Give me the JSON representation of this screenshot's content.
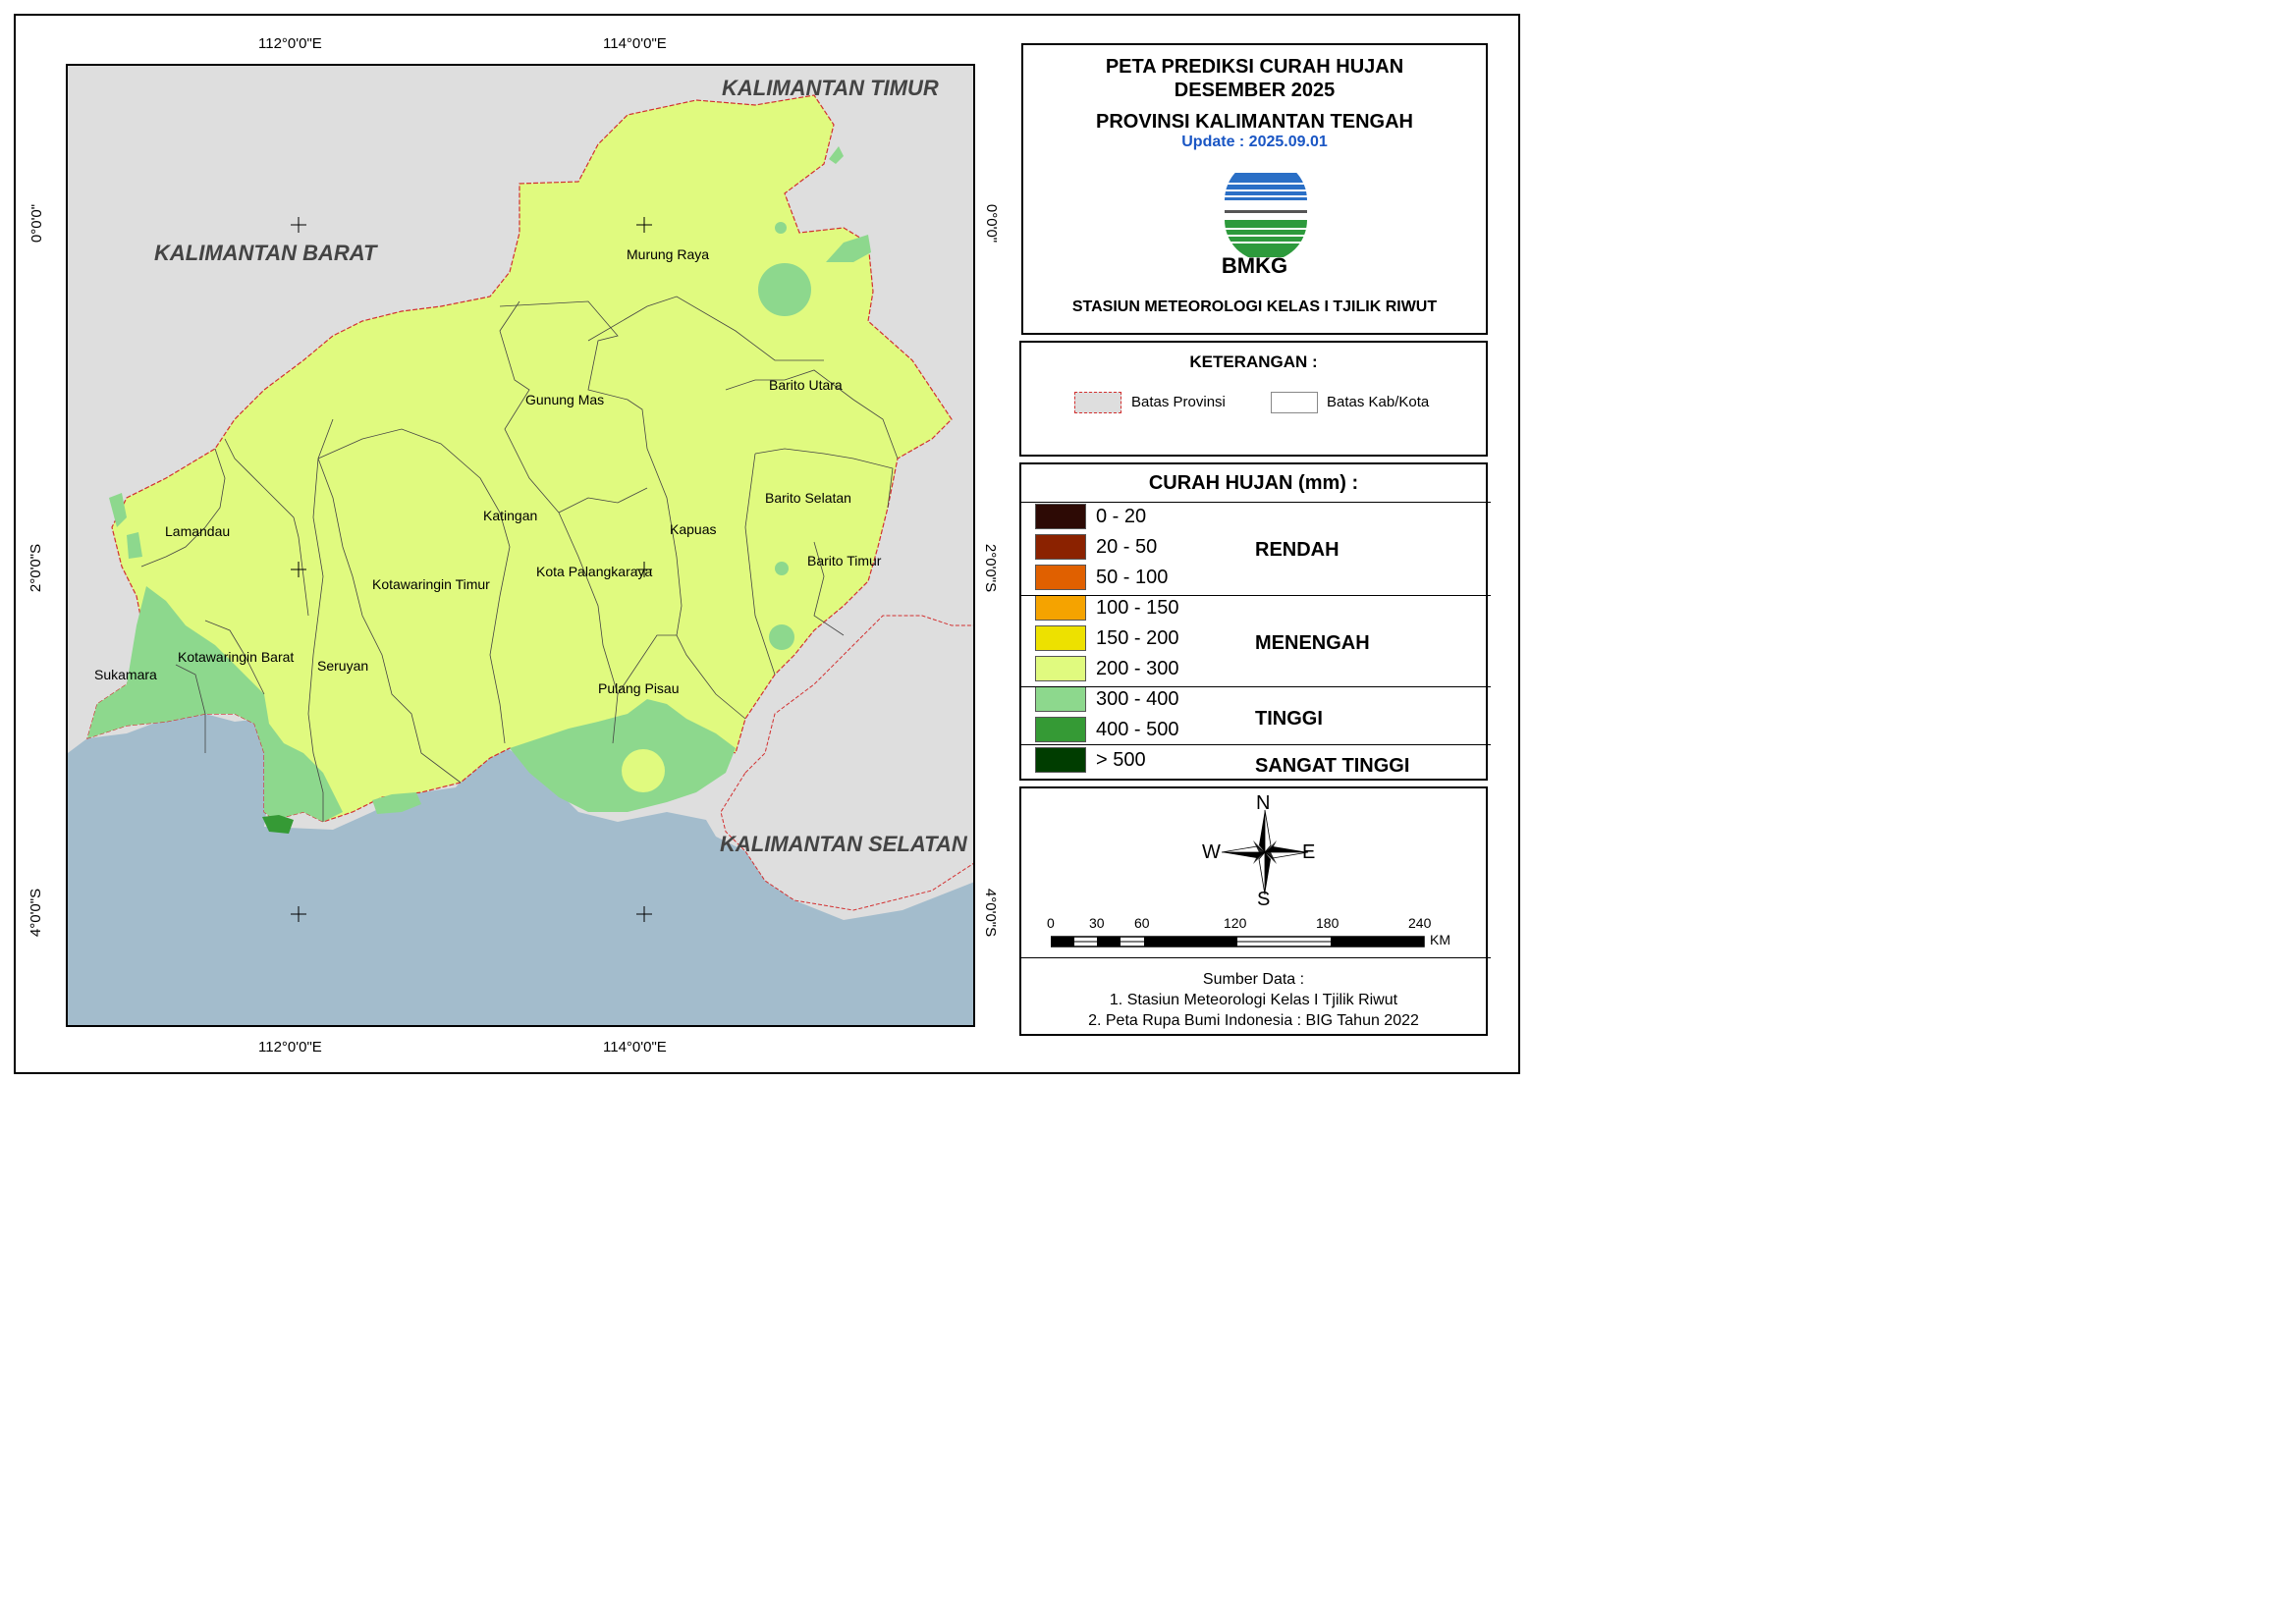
{
  "coords": {
    "top": [
      "112°0'0\"E",
      "114°0'0\"E"
    ],
    "bottom": [
      "112°0'0\"E",
      "114°0'0\"E"
    ],
    "left": [
      "0°0'0\"",
      "2°0'0\"S",
      "4°0'0\"S"
    ],
    "right": [
      "0°0'0\"",
      "2°0'0\"S",
      "4°0'0\"S"
    ]
  },
  "map": {
    "provinces": {
      "timur": "KALIMANTAN TIMUR",
      "barat": "KALIMANTAN BARAT",
      "selatan": "KALIMANTAN SELATAN"
    },
    "regencies": {
      "murung_raya": "Murung Raya",
      "gunung_mas": "Gunung Mas",
      "barito_utara": "Barito Utara",
      "katingan": "Katingan",
      "kapuas": "Kapuas",
      "barito_selatan": "Barito Selatan",
      "lamandau": "Lamandau",
      "kota_palangkaraya": "Kota Palangkaraya",
      "barito_timur": "Barito Timur",
      "kotawaringin_timur": "Kotawaringin Timur",
      "kotawaringin_barat": "Kotawaringin Barat",
      "sukamara": "Sukamara",
      "seruyan": "Seruyan",
      "pulang_pisau": "Pulang Pisau"
    },
    "colors": {
      "outside": "#dedede",
      "sea": "#a3bccc",
      "r200_300": "#e0fa7f",
      "r300_400": "#8dd88d",
      "r400_500": "#359a35"
    }
  },
  "title": {
    "line1": "PETA PREDIKSI CURAH HUJAN",
    "line2": "DESEMBER 2025",
    "line3": "PROVINSI KALIMANTAN TENGAH",
    "update": "Update : 2025.09.01",
    "logo": "BMKG",
    "station": "STASIUN METEOROLOGI KELAS I TJILIK RIWUT"
  },
  "keterangan": {
    "title": "KETERANGAN :",
    "batas_provinsi": "Batas Provinsi",
    "batas_kab": "Batas Kab/Kota"
  },
  "curah": {
    "title": "CURAH HUJAN (mm) :",
    "items": [
      {
        "label": "0 - 20",
        "color": "#2d0a05"
      },
      {
        "label": "20 - 50",
        "color": "#8b2200"
      },
      {
        "label": "50 - 100",
        "color": "#e06000"
      },
      {
        "label": "100 - 150",
        "color": "#f5a300"
      },
      {
        "label": "150  - 200",
        "color": "#ede100"
      },
      {
        "label": "200 - 300",
        "color": "#e0fa7f"
      },
      {
        "label": "300 - 400",
        "color": "#8dd88d"
      },
      {
        "label": "400 - 500",
        "color": "#359a35"
      },
      {
        "label": "> 500",
        "color": "#003d00"
      }
    ],
    "categories": {
      "rendah": "RENDAH",
      "menengah": "MENENGAH",
      "tinggi": "TINGGI",
      "sangat_tinggi": "SANGAT TINGGI"
    }
  },
  "compass": {
    "n": "N",
    "s": "S",
    "e": "E",
    "w": "W"
  },
  "scale": {
    "ticks": [
      "0",
      "30",
      "60",
      "120",
      "180",
      "240"
    ],
    "unit": "KM"
  },
  "sources": {
    "title": "Sumber Data :",
    "line1": "1. Stasiun Meteorologi Kelas I Tjilik Riwut",
    "line2": "2. Peta Rupa Bumi Indonesia : BIG Tahun 2022"
  }
}
